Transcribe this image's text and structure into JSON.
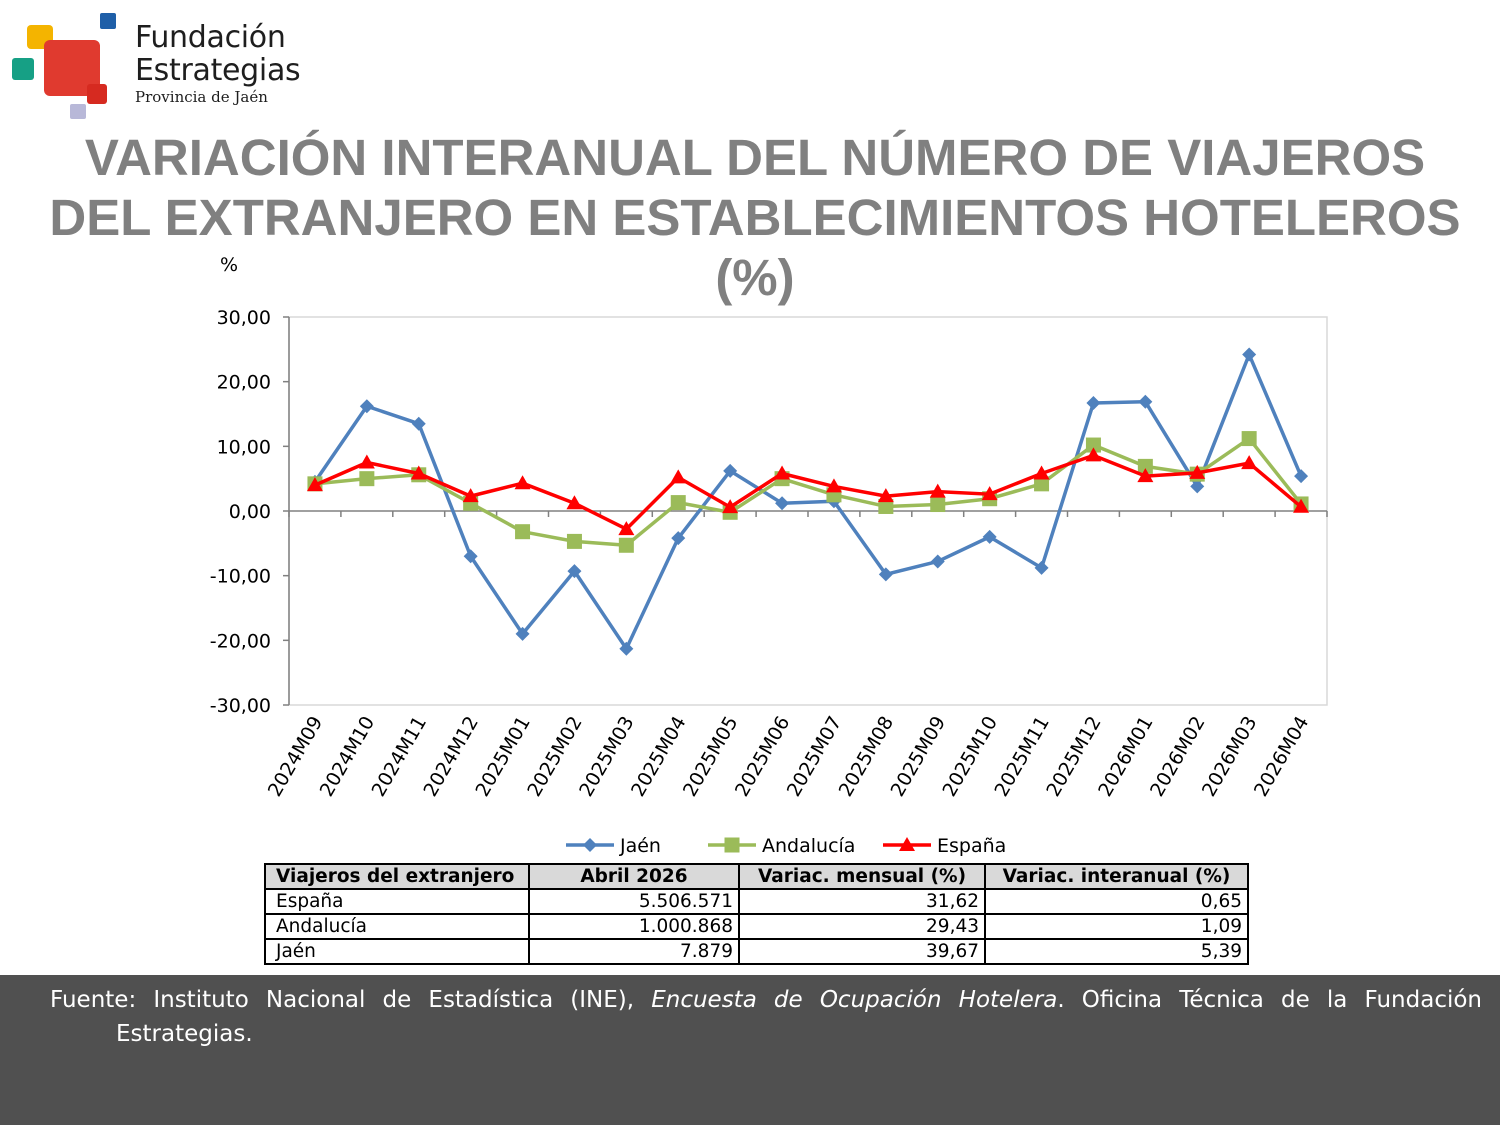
{
  "logo": {
    "line1": "Fundación",
    "line2": "Estrategias",
    "line3": "Provincia de Jaén",
    "colors": [
      "#f4b400",
      "#1f5fa8",
      "#e03a2f",
      "#16a085",
      "#b8b8d8"
    ]
  },
  "title": "VARIACIÓN INTERANUAL DEL NÚMERO DE VIAJEROS DEL EXTRANJERO EN ESTABLECIMIENTOS HOTELEROS (%)",
  "chart_data": {
    "type": "line",
    "ylabel": "%",
    "ylim": [
      -30,
      30
    ],
    "yticks": [
      "30,00",
      "20,00",
      "10,00",
      "0,00",
      "-10,00",
      "-20,00",
      "-30,00"
    ],
    "ytick_values": [
      30,
      20,
      10,
      0,
      -10,
      -20,
      -30
    ],
    "categories": [
      "2024M09",
      "2024M10",
      "2024M11",
      "2024M12",
      "2025M01",
      "2025M02",
      "2025M03",
      "2025M04",
      "2025M05",
      "2025M06",
      "2025M07",
      "2025M08",
      "2025M09",
      "2025M10",
      "2025M11",
      "2025M12",
      "2026M01",
      "2026M02",
      "2026M03",
      "2026M04"
    ],
    "series": [
      {
        "name": "Jaén",
        "color": "#4f81bd",
        "marker": "diamond",
        "values": [
          4.5,
          16.2,
          13.5,
          -7.0,
          -19.0,
          -9.3,
          -21.3,
          -4.2,
          6.2,
          1.2,
          1.5,
          -9.8,
          -7.8,
          -4.0,
          -8.8,
          16.7,
          16.9,
          3.8,
          24.2,
          5.39
        ]
      },
      {
        "name": "Andalucía",
        "color": "#9bbb59",
        "marker": "square",
        "values": [
          4.2,
          5.0,
          5.6,
          1.2,
          -3.2,
          -4.7,
          -5.3,
          1.3,
          -0.2,
          5.0,
          2.5,
          0.7,
          1.0,
          1.9,
          4.2,
          10.2,
          6.9,
          5.7,
          11.2,
          1.09
        ]
      },
      {
        "name": "España",
        "color": "#ff0000",
        "marker": "triangle",
        "values": [
          4.0,
          7.5,
          5.8,
          2.3,
          4.3,
          1.2,
          -2.8,
          5.2,
          0.6,
          5.8,
          3.8,
          2.3,
          3.0,
          2.6,
          5.8,
          8.6,
          5.4,
          5.9,
          7.4,
          0.65
        ]
      }
    ],
    "legend": "bottom",
    "grid": false
  },
  "table": {
    "headers": [
      "Viajeros del extranjero",
      "Abril 2026",
      "Variac. mensual (%)",
      "Variac. interanual (%)"
    ],
    "rows": [
      [
        "España",
        "5.506.571",
        "31,62",
        "0,65"
      ],
      [
        "Andalucía",
        "1.000.868",
        "29,43",
        "1,09"
      ],
      [
        "Jaén",
        "7.879",
        "39,67",
        "5,39"
      ]
    ]
  },
  "footer": {
    "lead": "Fuente: Instituto Nacional de Estadística (INE), ",
    "italic": "Encuesta de Ocupación Hotelera",
    "rest": ". Oficina Técnica de la Fundación Estrategias."
  }
}
